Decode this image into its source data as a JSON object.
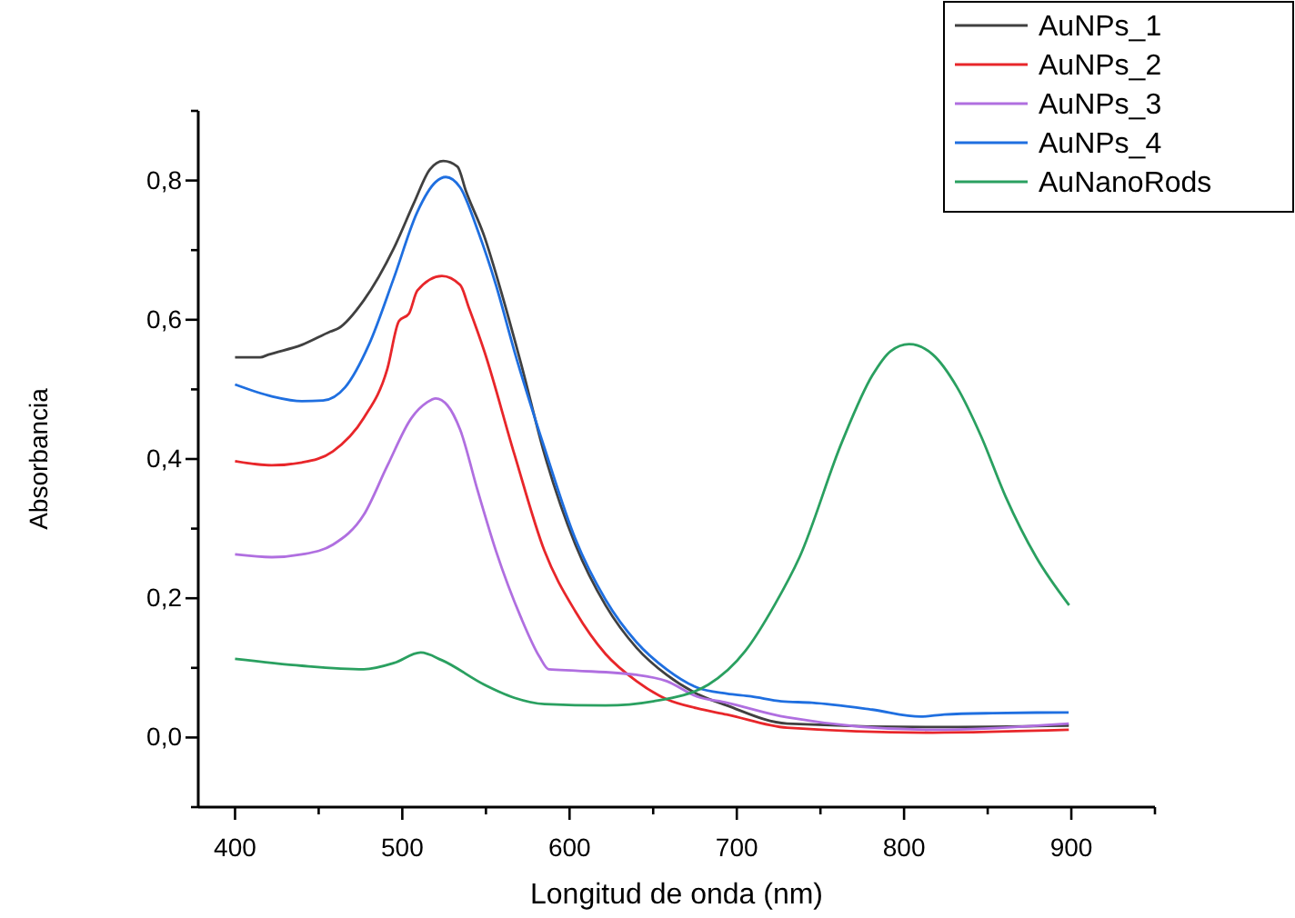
{
  "chart_data": {
    "type": "line",
    "xlabel": "Longitud de onda (nm)",
    "ylabel": "Absorbancia",
    "xlim": [
      378,
      950
    ],
    "ylim": [
      -0.1,
      0.9
    ],
    "xticks": [
      400,
      {
        "value": 450,
        "label": null
      },
      500,
      {
        "value": 550,
        "label": null
      },
      600,
      {
        "value": 650,
        "label": null
      },
      700,
      {
        "value": 750,
        "label": null
      },
      800,
      {
        "value": 850,
        "label": null
      },
      900,
      {
        "value": 950,
        "label": null
      }
    ],
    "yticks": [
      {
        "value": -0.1,
        "label": null
      },
      {
        "value": 0,
        "label": "0,0"
      },
      {
        "value": 0.1,
        "label": null
      },
      {
        "value": 0.2,
        "label": "0,2"
      },
      {
        "value": 0.3,
        "label": null
      },
      {
        "value": 0.4,
        "label": "0,4"
      },
      {
        "value": 0.5,
        "label": null
      },
      {
        "value": 0.6,
        "label": "0,6"
      },
      {
        "value": 0.7,
        "label": null
      },
      {
        "value": 0.8,
        "label": "0,8"
      },
      {
        "value": 0.9,
        "label": null
      }
    ],
    "grid": false,
    "legend": "top right",
    "marker": "none",
    "line_style": "solid",
    "series": [
      {
        "name": "AuNPs_1",
        "color": "#404040",
        "x": [
          400,
          415,
          420,
          440,
          457,
          462,
          477,
          495,
          507,
          516.5,
          524.5,
          533,
          538,
          549,
          560,
          571,
          585,
          603.5,
          621.5,
          640,
          658,
          676,
          694,
          730,
          817,
          898.5
        ],
        "values": [
          0.546,
          0.546,
          0.55,
          0.564,
          0.583,
          0.588,
          0.628,
          0.703,
          0.768,
          0.816,
          0.828,
          0.82,
          0.785,
          0.72,
          0.633,
          0.537,
          0.407,
          0.277,
          0.19,
          0.129,
          0.09,
          0.063,
          0.046,
          0.02,
          0.015,
          0.017
        ]
      },
      {
        "name": "AuNPs_2",
        "color": "#e8262a",
        "x": [
          400,
          422,
          440,
          458.5,
          477,
          491,
          498,
          504,
          509,
          523.7,
          534.6,
          540,
          549,
          567,
          585,
          603.5,
          621.5,
          640,
          658,
          676,
          694,
          730,
          817,
          898.5
        ],
        "values": [
          0.397,
          0.391,
          0.395,
          0.411,
          0.459,
          0.529,
          0.598,
          0.609,
          0.642,
          0.663,
          0.65,
          0.616,
          0.555,
          0.407,
          0.268,
          0.181,
          0.12,
          0.081,
          0.055,
          0.042,
          0.033,
          0.014,
          0.007,
          0.011
        ]
      },
      {
        "name": "AuNPs_3",
        "color": "#b06fe0",
        "x": [
          400,
          422,
          440,
          458.5,
          477,
          491,
          505.5,
          514.6,
          520,
          527,
          534.6,
          545,
          556,
          571,
          582,
          587.5,
          603.5,
          640,
          658,
          676,
          694,
          730,
          817,
          898.5
        ],
        "values": [
          0.263,
          0.259,
          0.263,
          0.277,
          0.32,
          0.39,
          0.459,
          0.481,
          0.487,
          0.477,
          0.442,
          0.355,
          0.268,
          0.172,
          0.116,
          0.098,
          0.096,
          0.09,
          0.081,
          0.059,
          0.05,
          0.029,
          0.011,
          0.02
        ]
      },
      {
        "name": "AuNPs_4",
        "color": "#1f6fe0",
        "x": [
          400,
          422,
          440,
          452.6,
          465.8,
          480,
          494.8,
          509,
          520,
          526,
          534.6,
          545,
          556,
          567,
          585,
          603.5,
          621.5,
          640,
          658,
          676,
          694,
          708.5,
          726.6,
          744.8,
          781,
          810,
          824,
          853,
          898.4
        ],
        "values": [
          0.507,
          0.49,
          0.483,
          0.484,
          0.503,
          0.564,
          0.659,
          0.755,
          0.798,
          0.805,
          0.79,
          0.729,
          0.65,
          0.555,
          0.416,
          0.285,
          0.198,
          0.137,
          0.098,
          0.072,
          0.063,
          0.059,
          0.052,
          0.05,
          0.04,
          0.03,
          0.033,
          0.035,
          0.036
        ]
      },
      {
        "name": "AuNanoRods",
        "color": "#2aa060",
        "x": [
          400,
          440,
          477,
          495,
          511,
          523.7,
          549,
          567,
          585,
          621.5,
          650,
          683,
          705,
          722.5,
          737.5,
          762.8,
          781,
          792,
          803,
          817.2,
          831.7,
          846,
          860.7,
          879,
          898.7
        ],
        "values": [
          0.113,
          0.103,
          0.098,
          0.107,
          0.122,
          0.111,
          0.076,
          0.057,
          0.048,
          0.046,
          0.052,
          0.076,
          0.124,
          0.19,
          0.259,
          0.424,
          0.52,
          0.555,
          0.565,
          0.55,
          0.503,
          0.433,
          0.346,
          0.259,
          0.19
        ]
      }
    ]
  }
}
